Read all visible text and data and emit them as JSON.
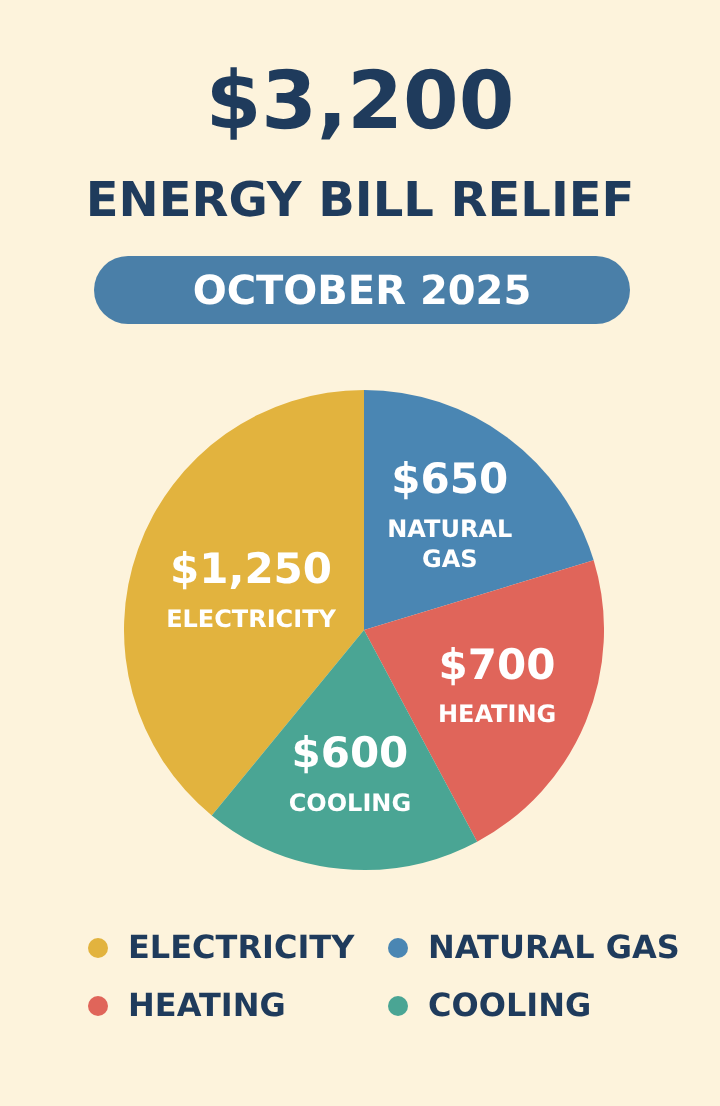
{
  "chart_data": {
    "type": "pie",
    "title": "$3,200",
    "subtitle": "ENERGY BILL RELIEF",
    "annotations": [
      "OCTOBER 2025"
    ],
    "categories": [
      "ELECTRICITY",
      "NATURAL GAS",
      "HEATING",
      "COOLING"
    ],
    "values": [
      1250,
      650,
      700,
      600
    ],
    "colors": [
      "#e2b33e",
      "#4a86b3",
      "#e0655a",
      "#4aa594"
    ],
    "value_labels": [
      "$1,250",
      "$650",
      "$700",
      "$600"
    ],
    "legend": "bottom"
  }
}
